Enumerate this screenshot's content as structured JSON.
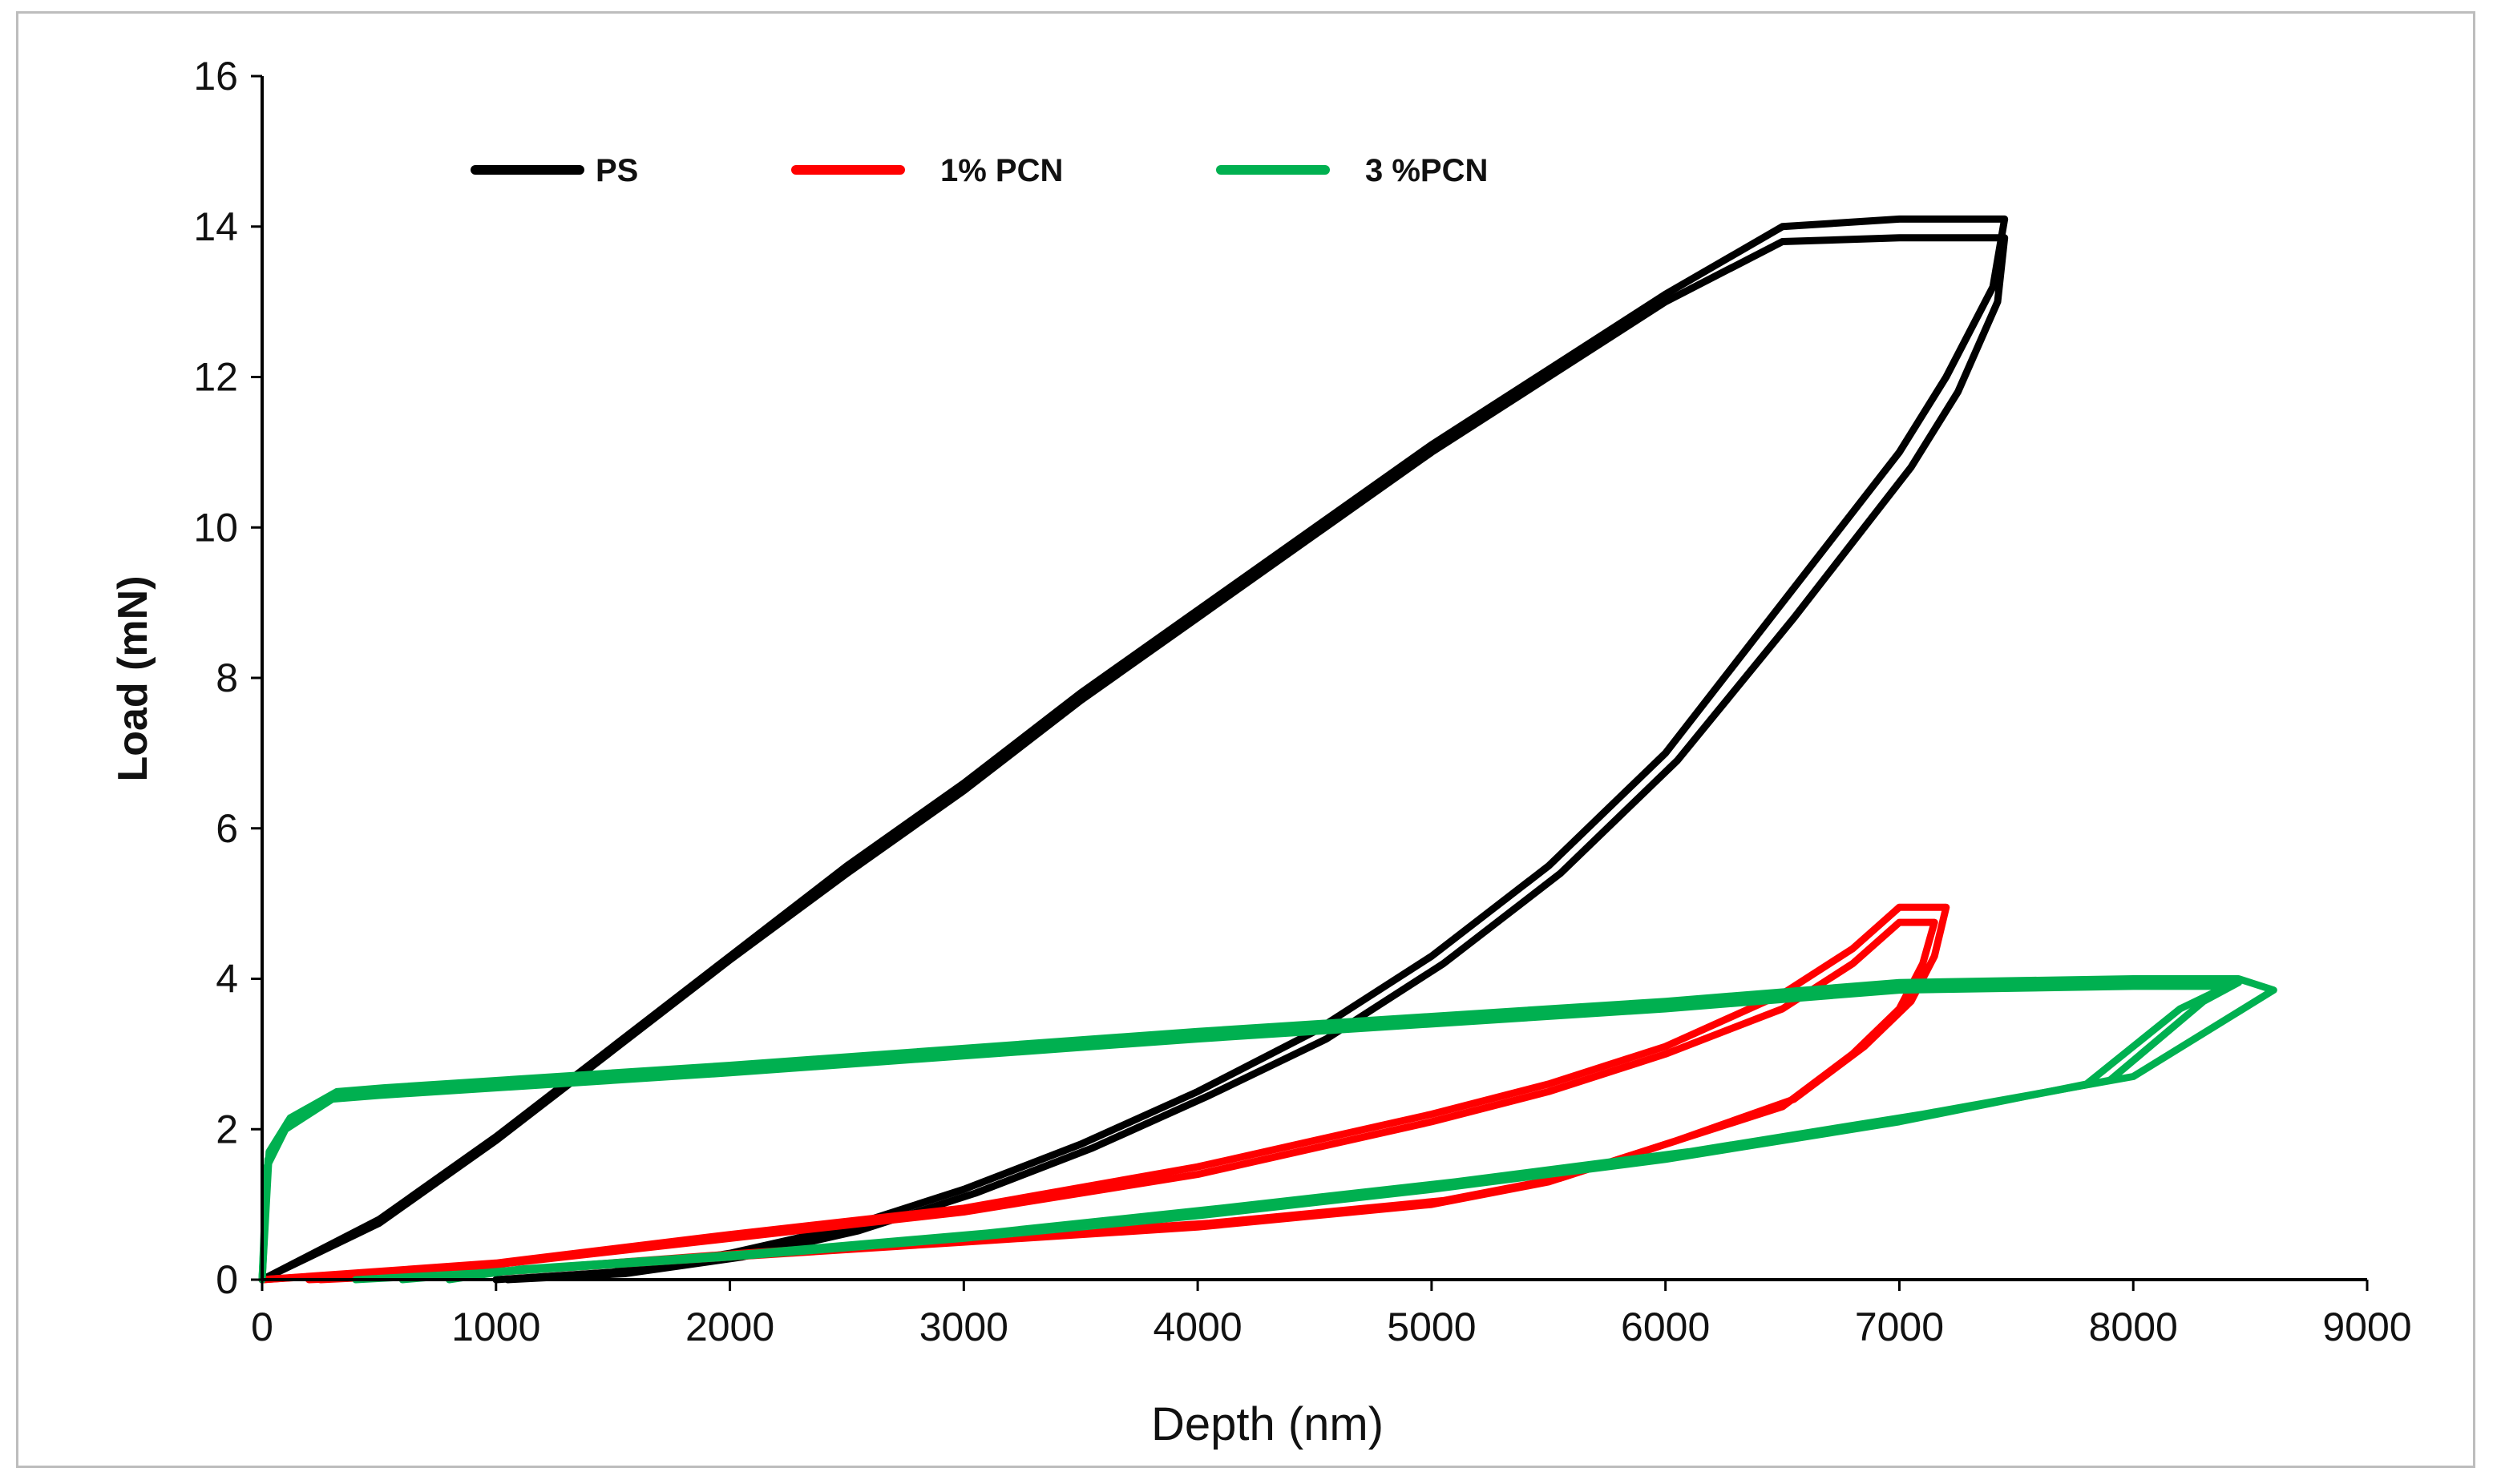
{
  "chart_data": {
    "type": "line",
    "title": "",
    "xlabel": "Depth (nm)",
    "ylabel": "Load (mN)",
    "xlim": [
      0,
      9000
    ],
    "ylim": [
      0,
      16
    ],
    "xticks": [
      0,
      1000,
      2000,
      3000,
      4000,
      5000,
      6000,
      7000,
      8000,
      9000
    ],
    "yticks": [
      0,
      2,
      4,
      6,
      8,
      10,
      12,
      14,
      16
    ],
    "grid": false,
    "legend_position": "top-left",
    "series": [
      {
        "name": "PS",
        "color": "#000000",
        "curves": [
          [
            [
              0,
              0
            ],
            [
              500,
              0.8
            ],
            [
              1000,
              1.9
            ],
            [
              1500,
              3.1
            ],
            [
              2000,
              4.3
            ],
            [
              2500,
              5.5
            ],
            [
              3000,
              6.6
            ],
            [
              3500,
              7.8
            ],
            [
              4000,
              8.9
            ],
            [
              4500,
              10.0
            ],
            [
              5000,
              11.1
            ],
            [
              5500,
              12.1
            ],
            [
              6000,
              13.1
            ],
            [
              6500,
              14.0
            ],
            [
              7000,
              14.1
            ],
            [
              7450,
              14.1
            ],
            [
              7400,
              13.2
            ],
            [
              7200,
              12.0
            ],
            [
              7000,
              11.0
            ],
            [
              6500,
              9.0
            ],
            [
              6000,
              7.0
            ],
            [
              5500,
              5.5
            ],
            [
              5000,
              4.3
            ],
            [
              4500,
              3.3
            ],
            [
              4000,
              2.5
            ],
            [
              3500,
              1.8
            ],
            [
              3000,
              1.2
            ],
            [
              2500,
              0.7
            ],
            [
              2000,
              0.35
            ],
            [
              1500,
              0.1
            ],
            [
              1000,
              0
            ]
          ],
          [
            [
              0,
              0
            ],
            [
              500,
              0.75
            ],
            [
              1000,
              1.85
            ],
            [
              1500,
              3.05
            ],
            [
              2000,
              4.25
            ],
            [
              2500,
              5.4
            ],
            [
              3000,
              6.5
            ],
            [
              3500,
              7.7
            ],
            [
              4000,
              8.8
            ],
            [
              4500,
              9.9
            ],
            [
              5000,
              11.0
            ],
            [
              5500,
              12.0
            ],
            [
              6000,
              13.0
            ],
            [
              6500,
              13.8
            ],
            [
              7000,
              13.85
            ],
            [
              7450,
              13.85
            ],
            [
              7420,
              13.0
            ],
            [
              7250,
              11.8
            ],
            [
              7050,
              10.8
            ],
            [
              6550,
              8.8
            ],
            [
              6050,
              6.9
            ],
            [
              5550,
              5.4
            ],
            [
              5050,
              4.2
            ],
            [
              4550,
              3.2
            ],
            [
              4050,
              2.45
            ],
            [
              3550,
              1.75
            ],
            [
              3050,
              1.15
            ],
            [
              2550,
              0.65
            ],
            [
              2050,
              0.3
            ],
            [
              1550,
              0.08
            ],
            [
              1050,
              0
            ]
          ]
        ]
      },
      {
        "name": "1% PCN",
        "color": "#ff0000",
        "curves": [
          [
            [
              0,
              0
            ],
            [
              1000,
              0.2
            ],
            [
              2000,
              0.55
            ],
            [
              3000,
              0.9
            ],
            [
              4000,
              1.4
            ],
            [
              5000,
              2.1
            ],
            [
              5500,
              2.5
            ],
            [
              6000,
              3.0
            ],
            [
              6500,
              3.6
            ],
            [
              6800,
              4.2
            ],
            [
              7000,
              4.75
            ],
            [
              7150,
              4.75
            ],
            [
              7100,
              4.2
            ],
            [
              7000,
              3.6
            ],
            [
              6800,
              3.0
            ],
            [
              6500,
              2.3
            ],
            [
              6000,
              1.8
            ],
            [
              5500,
              1.3
            ],
            [
              5000,
              1.0
            ],
            [
              4000,
              0.7
            ],
            [
              3000,
              0.5
            ],
            [
              2000,
              0.3
            ],
            [
              1000,
              0.1
            ],
            [
              200,
              0
            ]
          ],
          [
            [
              0,
              0
            ],
            [
              1000,
              0.22
            ],
            [
              2000,
              0.6
            ],
            [
              3000,
              0.95
            ],
            [
              4000,
              1.5
            ],
            [
              5000,
              2.2
            ],
            [
              5500,
              2.6
            ],
            [
              6000,
              3.1
            ],
            [
              6500,
              3.8
            ],
            [
              6800,
              4.4
            ],
            [
              7000,
              4.95
            ],
            [
              7200,
              4.95
            ],
            [
              7150,
              4.3
            ],
            [
              7050,
              3.7
            ],
            [
              6850,
              3.1
            ],
            [
              6550,
              2.4
            ],
            [
              6050,
              1.85
            ],
            [
              5550,
              1.35
            ],
            [
              5050,
              1.05
            ],
            [
              4050,
              0.75
            ],
            [
              3050,
              0.55
            ],
            [
              2050,
              0.35
            ],
            [
              1050,
              0.12
            ],
            [
              250,
              0
            ]
          ]
        ]
      },
      {
        "name": "3 %PCN",
        "color": "#00b050",
        "curves": [
          [
            [
              0,
              0
            ],
            [
              20,
              1.5
            ],
            [
              100,
              2.0
            ],
            [
              300,
              2.4
            ],
            [
              500,
              2.45
            ],
            [
              2000,
              2.75
            ],
            [
              4000,
              3.2
            ],
            [
              6000,
              3.6
            ],
            [
              7000,
              3.85
            ],
            [
              8000,
              3.9
            ],
            [
              8400,
              3.9
            ],
            [
              8200,
              3.6
            ],
            [
              7800,
              2.6
            ],
            [
              7000,
              2.1
            ],
            [
              6000,
              1.6
            ],
            [
              5000,
              1.2
            ],
            [
              4000,
              0.85
            ],
            [
              3000,
              0.55
            ],
            [
              2000,
              0.3
            ],
            [
              1000,
              0.1
            ],
            [
              400,
              0
            ]
          ],
          [
            [
              0,
              0
            ],
            [
              25,
              1.6
            ],
            [
              110,
              2.1
            ],
            [
              310,
              2.45
            ],
            [
              510,
              2.5
            ],
            [
              2000,
              2.8
            ],
            [
              4000,
              3.25
            ],
            [
              6000,
              3.65
            ],
            [
              7000,
              3.9
            ],
            [
              8000,
              3.95
            ],
            [
              8450,
              3.95
            ],
            [
              8300,
              3.7
            ],
            [
              7900,
              2.65
            ],
            [
              7050,
              2.15
            ],
            [
              6050,
              1.65
            ],
            [
              5050,
              1.25
            ],
            [
              4050,
              0.9
            ],
            [
              3050,
              0.6
            ],
            [
              2050,
              0.32
            ],
            [
              1050,
              0.12
            ],
            [
              600,
              0
            ]
          ],
          [
            [
              0,
              0
            ],
            [
              30,
              1.7
            ],
            [
              120,
              2.15
            ],
            [
              320,
              2.5
            ],
            [
              520,
              2.55
            ],
            [
              2000,
              2.85
            ],
            [
              4000,
              3.3
            ],
            [
              6000,
              3.7
            ],
            [
              7000,
              3.95
            ],
            [
              8000,
              4.0
            ],
            [
              8450,
              4.0
            ],
            [
              8600,
              3.85
            ],
            [
              8000,
              2.7
            ],
            [
              7100,
              2.2
            ],
            [
              6100,
              1.7
            ],
            [
              5100,
              1.3
            ],
            [
              4100,
              0.95
            ],
            [
              3100,
              0.62
            ],
            [
              2100,
              0.35
            ],
            [
              1100,
              0.14
            ],
            [
              800,
              0
            ]
          ]
        ]
      }
    ]
  }
}
